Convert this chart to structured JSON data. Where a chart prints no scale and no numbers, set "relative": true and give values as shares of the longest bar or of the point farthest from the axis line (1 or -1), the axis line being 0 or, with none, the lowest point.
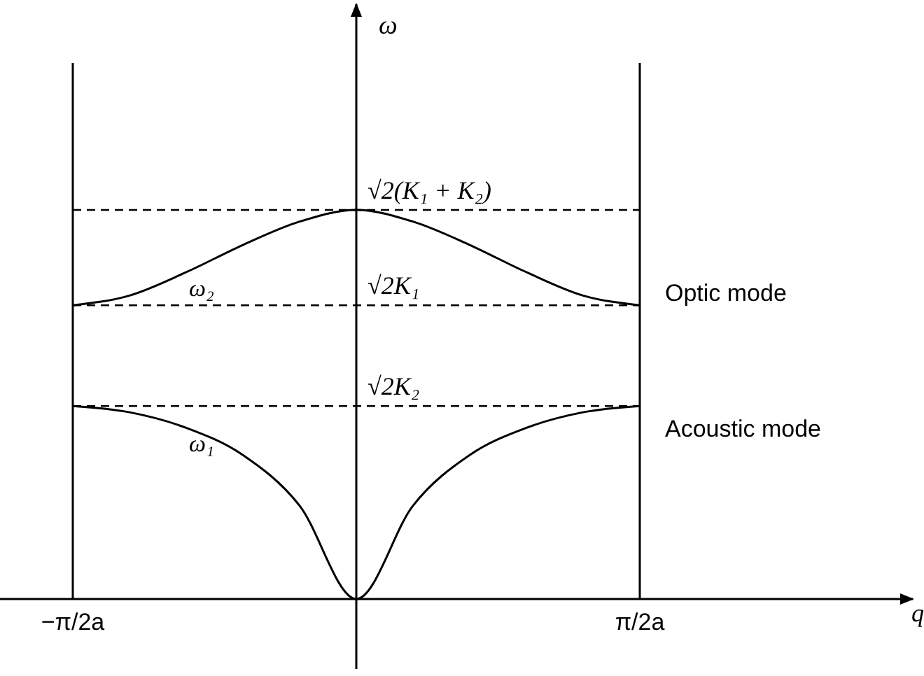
{
  "chart_data": {
    "type": "line",
    "relative": true,
    "categories": [
      "−π/2a",
      null,
      null,
      null,
      null,
      null,
      null,
      null,
      null,
      null,
      "π/2a"
    ],
    "series": [
      {
        "name": "ω₂",
        "color": "#000000",
        "values": [
          0.755,
          0.78,
          0.84,
          0.91,
          0.97,
          1,
          0.97,
          0.91,
          0.84,
          0.78,
          0.755
        ]
      },
      {
        "name": "ω₁",
        "color": "#000000",
        "values": [
          0.496,
          0.48,
          0.44,
          0.37,
          0.24,
          0,
          0.24,
          0.37,
          0.44,
          0.48,
          0.496
        ]
      }
    ],
    "ref_lines": [
      {
        "axis": "y",
        "value": 1,
        "label": "√2(K₁ + K₂)",
        "line_style": "dashed",
        "color": "#000000"
      },
      {
        "axis": "y",
        "value": 0.755,
        "label": "√2K₁",
        "line_style": "dashed",
        "color": "#000000"
      },
      {
        "axis": "y",
        "value": 0.496,
        "label": "√2K₂",
        "line_style": "dashed",
        "color": "#000000"
      }
    ],
    "annotations": [
      {
        "text": "Optic mode",
        "x": "π/2a",
        "y": 0.755
      },
      {
        "text": "Acoustic mode",
        "x": "π/2a",
        "y": 0.496
      },
      "q",
      "ω"
    ],
    "marker": "none",
    "line_style": "solid",
    "grid": "x",
    "legend": false
  }
}
